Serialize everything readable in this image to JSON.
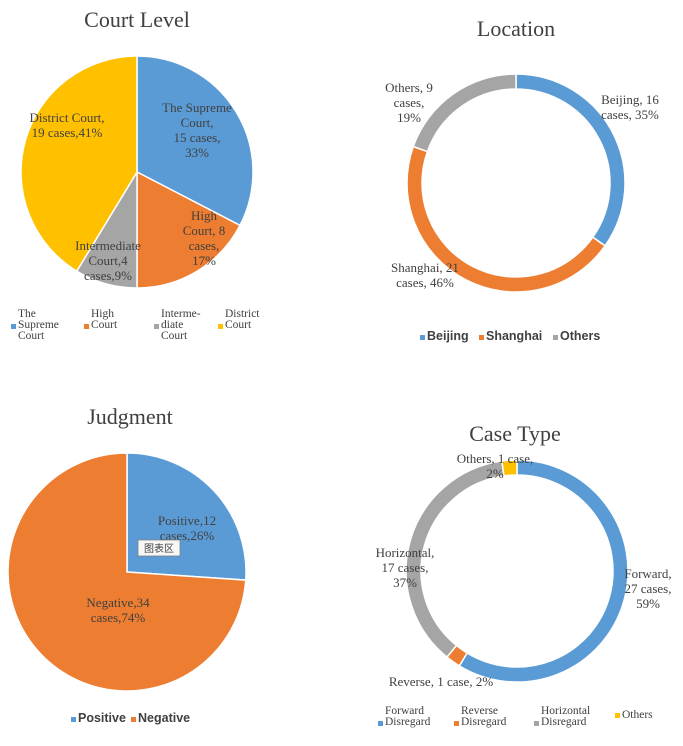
{
  "chart_data": [
    {
      "type": "pie",
      "title": "Court Level",
      "slices": [
        {
          "name": "The Supreme Court",
          "value": 15,
          "pct": 33,
          "color": "#5b9bd5",
          "label_lines": [
            "The Supreme",
            "Court,",
            "15 cases,",
            "33%"
          ]
        },
        {
          "name": "High Court",
          "value": 8,
          "pct": 17,
          "color": "#ed7d31",
          "label_lines": [
            "High",
            "Court, 8",
            "cases,",
            "17%"
          ]
        },
        {
          "name": "Intermediate Court",
          "value": 4,
          "pct": 9,
          "color": "#a5a5a5",
          "label_lines": [
            "Intermediate",
            "Court,4",
            "cases,9%"
          ]
        },
        {
          "name": "District Court",
          "value": 19,
          "pct": 41,
          "color": "#ffc000",
          "label_lines": [
            "District Court,",
            "19 cases,41%"
          ]
        }
      ],
      "legend": [
        {
          "lines": [
            "The",
            "Supreme",
            "Court"
          ],
          "color": "#5b9bd5"
        },
        {
          "lines": [
            "High",
            "Court"
          ],
          "color": "#ed7d31"
        },
        {
          "lines": [
            "Interme-",
            "diate",
            "Court"
          ],
          "color": "#a5a5a5"
        },
        {
          "lines": [
            "District",
            "Court"
          ],
          "color": "#ffc000"
        }
      ],
      "legend_position": "bottom"
    },
    {
      "type": "pie",
      "title": "Location",
      "slices": [
        {
          "name": "Beijing",
          "value": 16,
          "pct": 35,
          "color": "#5b9bd5",
          "label_lines": [
            "Beijing, 16",
            "cases, 35%"
          ]
        },
        {
          "name": "Shanghai",
          "value": 21,
          "pct": 46,
          "color": "#ed7d31",
          "label_lines": [
            "Shanghai, 21",
            "cases, 46%"
          ]
        },
        {
          "name": "Others",
          "value": 9,
          "pct": 19,
          "color": "#a5a5a5",
          "label_lines": [
            "Others, 9",
            "cases,",
            "19%"
          ]
        }
      ],
      "legend": [
        {
          "lines": [
            "Beijing"
          ],
          "color": "#5b9bd5"
        },
        {
          "lines": [
            "Shanghai"
          ],
          "color": "#ed7d31"
        },
        {
          "lines": [
            "Others"
          ],
          "color": "#a5a5a5"
        }
      ],
      "legend_position": "bottom"
    },
    {
      "type": "pie",
      "title": "Judgment",
      "slices": [
        {
          "name": "Positive",
          "value": 12,
          "pct": 26,
          "color": "#5b9bd5",
          "label_lines": [
            "Positive,12",
            "cases,26%"
          ]
        },
        {
          "name": "Negative",
          "value": 34,
          "pct": 74,
          "color": "#ed7d31",
          "label_lines": [
            "Negative,34",
            "cases,74%"
          ]
        }
      ],
      "legend": [
        {
          "lines": [
            "Positive"
          ],
          "color": "#5b9bd5"
        },
        {
          "lines": [
            "Negative"
          ],
          "color": "#ed7d31"
        }
      ],
      "legend_position": "bottom",
      "tag": "图表区"
    },
    {
      "type": "pie",
      "title": "Case Type",
      "slices": [
        {
          "name": "Forward Disregard",
          "value": 27,
          "pct": 59,
          "color": "#5b9bd5",
          "label_lines": [
            "Forward,",
            "27 cases,",
            "59%"
          ]
        },
        {
          "name": "Reverse Disregard",
          "value": 1,
          "pct": 2,
          "color": "#ed7d31",
          "label_lines": [
            "Reverse, 1 case, 2%"
          ]
        },
        {
          "name": "Horizontal Disregard",
          "value": 17,
          "pct": 37,
          "color": "#a5a5a5",
          "label_lines": [
            "Horizontal,",
            "17 cases,",
            "37%"
          ]
        },
        {
          "name": "Others",
          "value": 1,
          "pct": 2,
          "color": "#ffc000",
          "label_lines": [
            "Others, 1 case,",
            "2%"
          ]
        }
      ],
      "legend": [
        {
          "lines": [
            "Forward",
            "Disregard"
          ],
          "color": "#5b9bd5"
        },
        {
          "lines": [
            "Reverse",
            "Disregard"
          ],
          "color": "#ed7d31"
        },
        {
          "lines": [
            "Horizontal",
            "Disregard"
          ],
          "color": "#a5a5a5"
        },
        {
          "lines": [
            "Others"
          ],
          "color": "#ffc000"
        }
      ],
      "legend_position": "bottom"
    }
  ]
}
